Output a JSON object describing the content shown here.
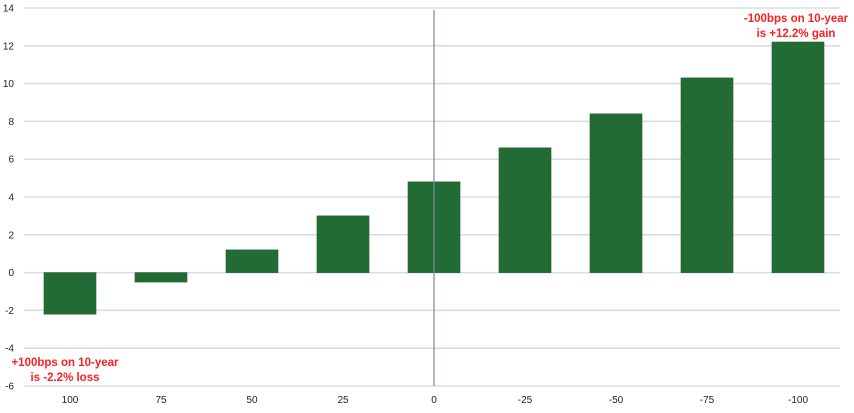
{
  "chart_data": {
    "type": "bar",
    "categories": [
      "100",
      "75",
      "50",
      "25",
      "0",
      "-25",
      "-50",
      "-75",
      "-100"
    ],
    "values": [
      -2.2,
      -0.5,
      1.2,
      3.0,
      4.8,
      6.6,
      8.4,
      10.3,
      12.2
    ],
    "ylim": [
      -6,
      14
    ],
    "yticks": [
      "-6",
      "-4",
      "-2",
      "0",
      "2",
      "4",
      "6",
      "8",
      "10",
      "12",
      "14"
    ],
    "grid": true,
    "title": "",
    "xlabel": "",
    "ylabel": "",
    "bar_color": "#236b35",
    "annotation_color": "#ff1f1f",
    "reference_line_at_category": "0",
    "annotations": [
      {
        "lines": [
          "+100bps on 10-year",
          "is -2.2% loss"
        ],
        "category": "100"
      },
      {
        "lines": [
          "-100bps on 10-year",
          "is +12.2% gain"
        ],
        "category": "-100"
      }
    ]
  }
}
